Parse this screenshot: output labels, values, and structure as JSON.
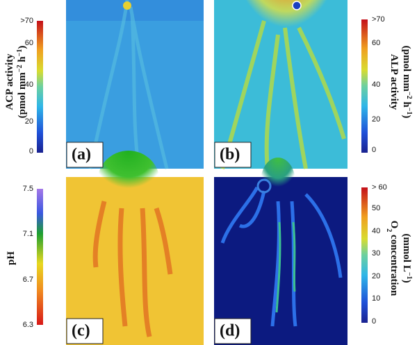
{
  "panels": [
    {
      "label": "(a)",
      "colorbar": {
        "title": [
          {
            "text": "ACP activity"
          }
        ],
        "unit": [
          {
            "text": "(pmol mm"
          },
          {
            "sup": "−2"
          },
          {
            "text": " h"
          },
          {
            "sup": "−1"
          },
          {
            "text": ")"
          }
        ],
        "ticks": [
          ">70",
          "60",
          "40",
          "20",
          "0"
        ]
      }
    },
    {
      "label": "(b)",
      "colorbar": {
        "title": [
          {
            "text": "ALP activity"
          }
        ],
        "unit": [
          {
            "text": "(pmol mm"
          },
          {
            "sup": "−2"
          },
          {
            "text": " h"
          },
          {
            "sup": "−1"
          },
          {
            "text": ")"
          }
        ],
        "ticks": [
          ">70",
          "60",
          "40",
          "20",
          "0"
        ]
      }
    },
    {
      "label": "(c)",
      "colorbar": {
        "title": [
          {
            "text": "pH"
          }
        ],
        "ticks": [
          "7.5",
          "7.1",
          "6.7",
          "6.3"
        ]
      }
    },
    {
      "label": "(d)",
      "colorbar": {
        "title": [
          {
            "text": "O"
          },
          {
            "sub": "2"
          },
          {
            "text": " concentration"
          }
        ],
        "unit": [
          {
            "text": "(mmol L"
          },
          {
            "sup": "−1"
          },
          {
            "text": ")"
          }
        ],
        "ticks": [
          "> 60",
          "50",
          "40",
          "30",
          "20",
          "10",
          "0"
        ]
      }
    }
  ]
}
